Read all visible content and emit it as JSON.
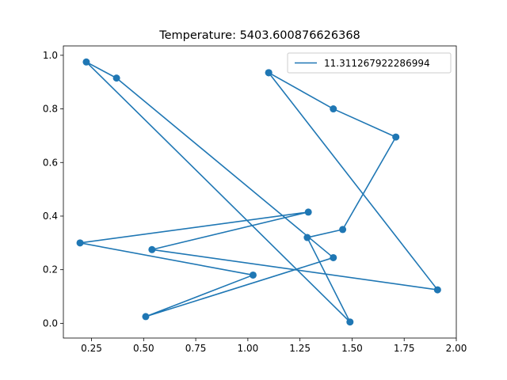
{
  "chart_data": {
    "type": "line",
    "title": "Temperature: 5403.600876626368",
    "xlabel": "",
    "ylabel": "",
    "xlim": [
      0.115,
      2.0
    ],
    "ylim": [
      -0.055,
      1.035
    ],
    "xticks": [
      0.25,
      0.5,
      0.75,
      1.0,
      1.25,
      1.5,
      1.75,
      2.0
    ],
    "xtick_labels": [
      "0.25",
      "0.50",
      "0.75",
      "1.00",
      "1.25",
      "1.50",
      "1.75",
      "2.00"
    ],
    "yticks": [
      0.0,
      0.2,
      0.4,
      0.6,
      0.8,
      1.0
    ],
    "ytick_labels": [
      "0.0",
      "0.2",
      "0.4",
      "0.6",
      "0.8",
      "1.0"
    ],
    "grid": false,
    "legend_position": "upper-right",
    "series": [
      {
        "name": "11.311267922286994",
        "color": "#1f77b4",
        "marker": "circle",
        "x": [
          1.1,
          1.41,
          1.71,
          1.455,
          1.285,
          1.49,
          0.225,
          0.37,
          1.41,
          0.51,
          1.025,
          0.195,
          1.29,
          0.54,
          1.91,
          1.1
        ],
        "y": [
          0.935,
          0.8,
          0.695,
          0.35,
          0.32,
          0.005,
          0.975,
          0.915,
          0.245,
          0.025,
          0.18,
          0.3,
          0.415,
          0.275,
          0.125,
          0.935
        ]
      }
    ]
  }
}
